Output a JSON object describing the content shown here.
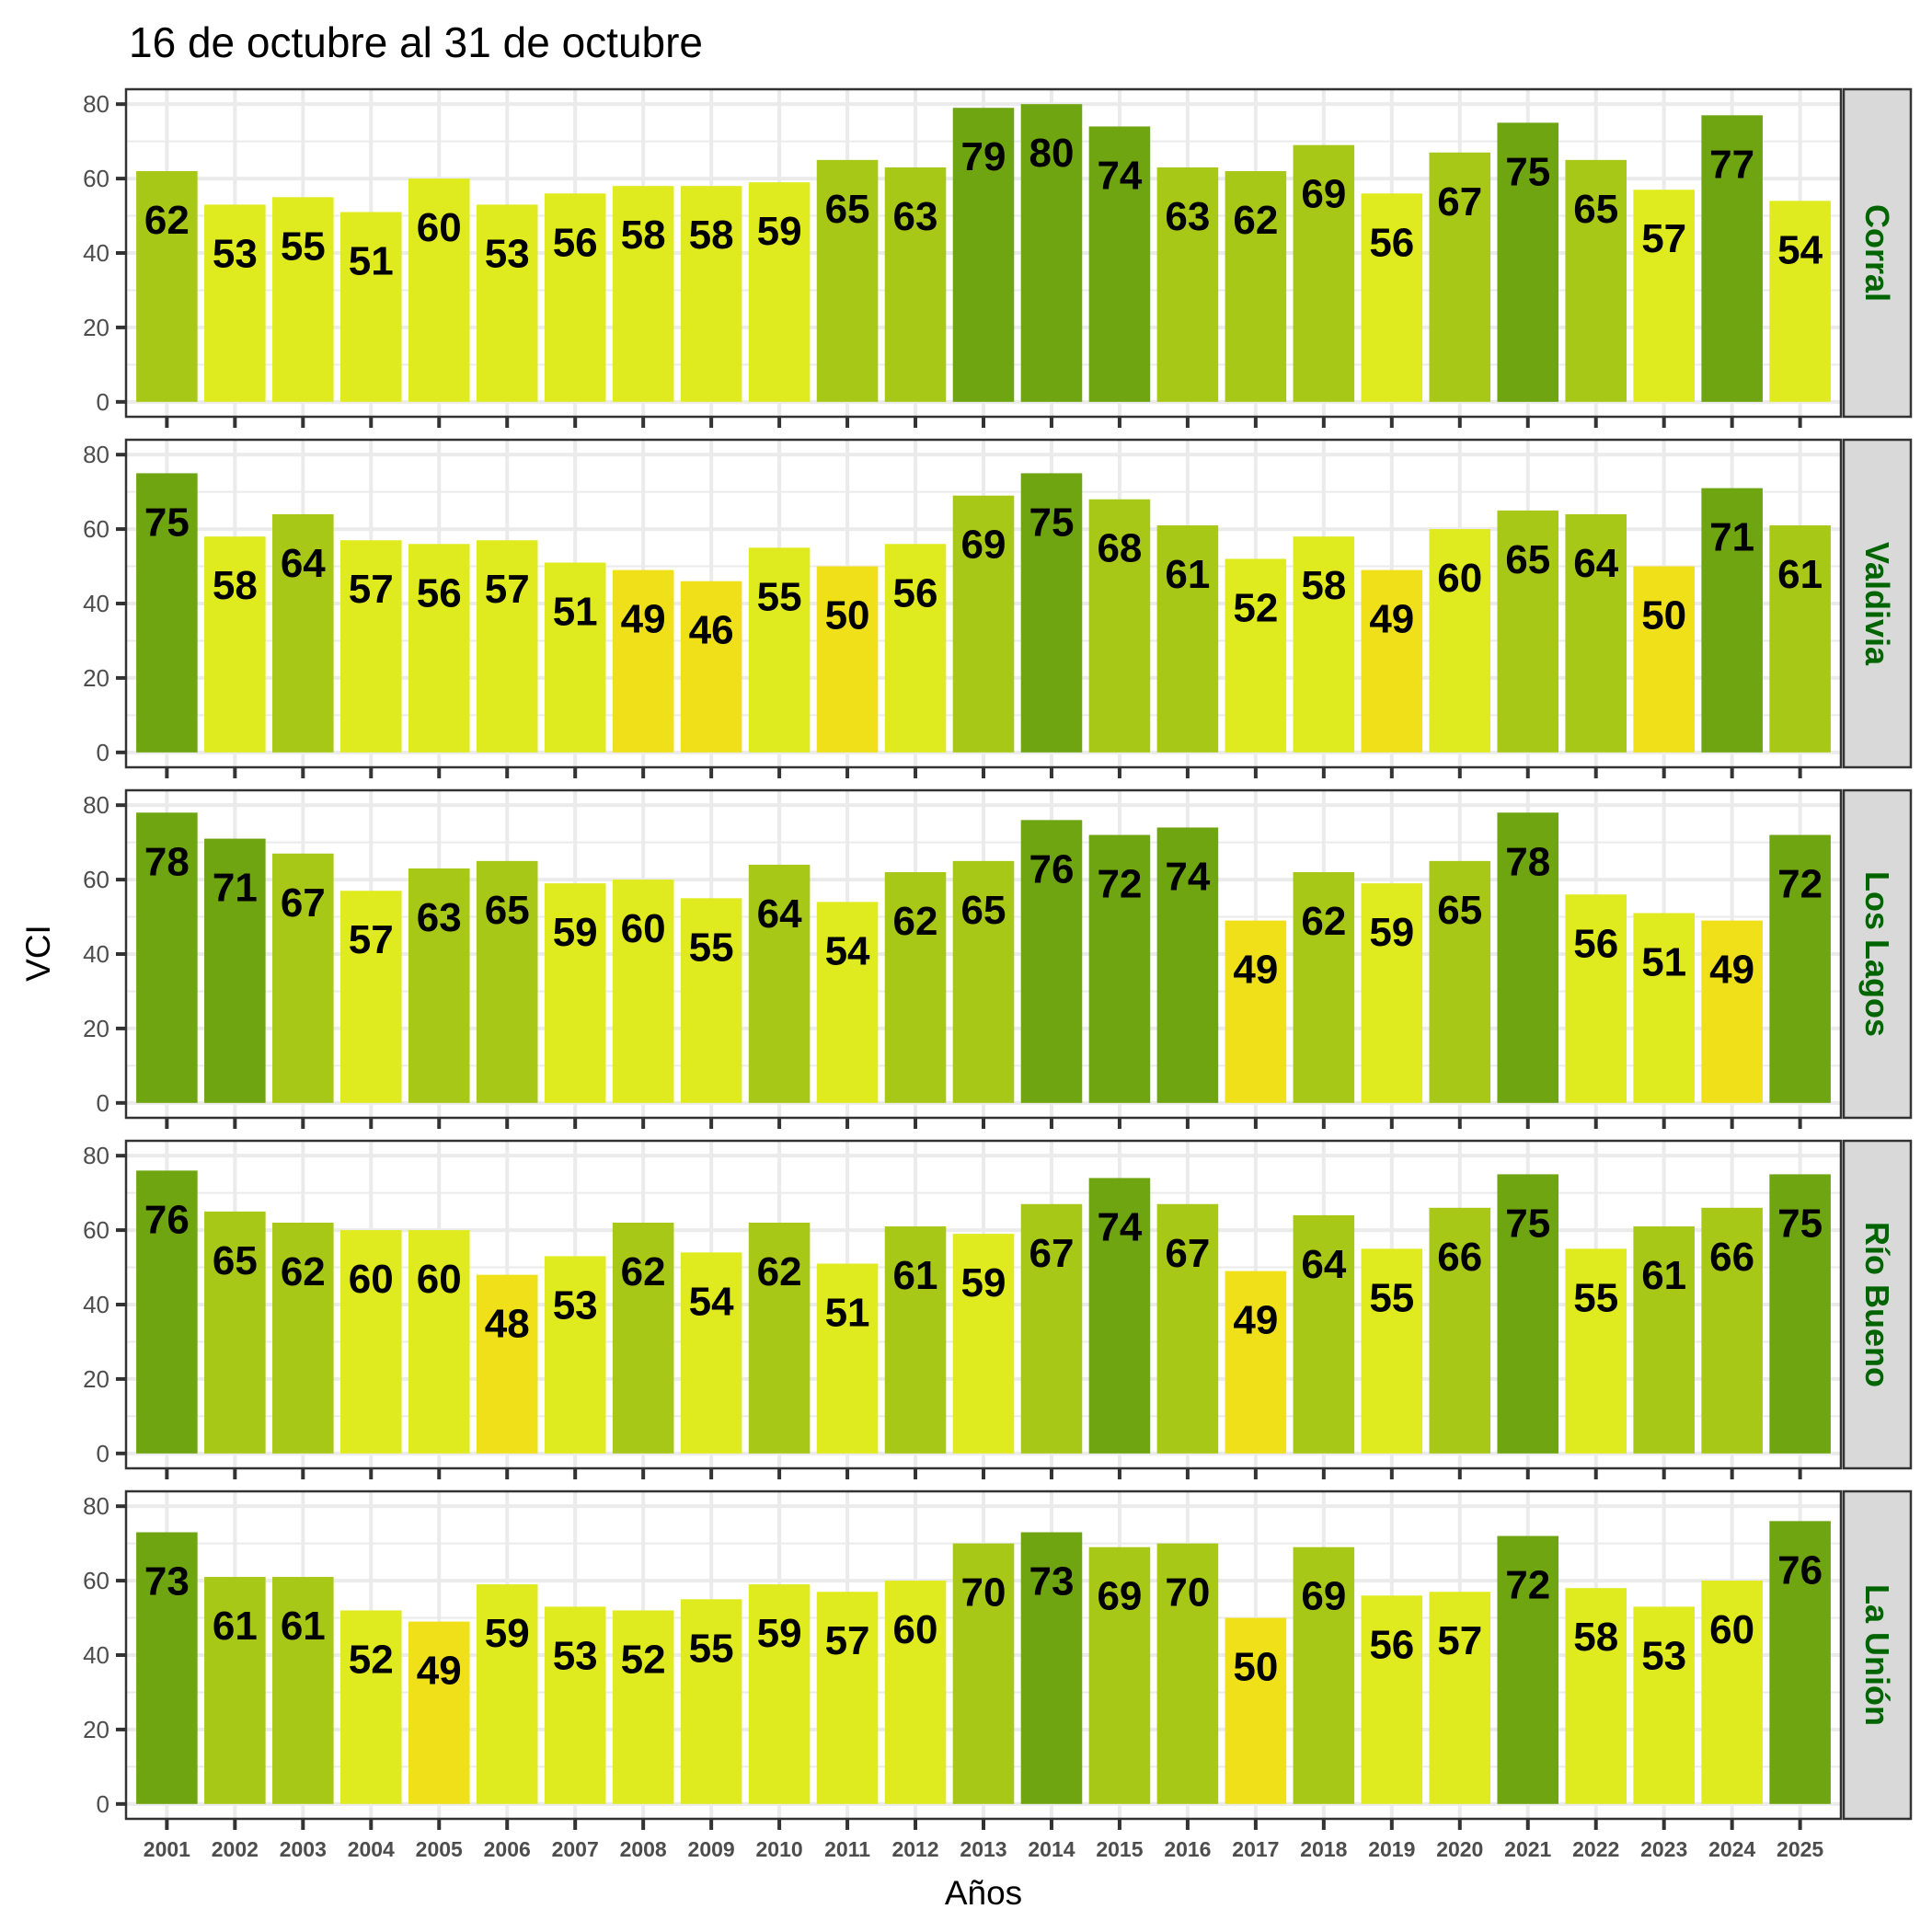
{
  "chart_data": {
    "type": "bar",
    "title": "16 de octubre al 31 de octubre",
    "xlabel": "Años",
    "ylabel": "VCI",
    "ylim": [
      0,
      80
    ],
    "yticks": [
      0,
      20,
      40,
      60,
      80
    ],
    "grid": true,
    "categories": [
      "2001",
      "2002",
      "2003",
      "2004",
      "2005",
      "2006",
      "2007",
      "2008",
      "2009",
      "2010",
      "2011",
      "2012",
      "2013",
      "2014",
      "2015",
      "2016",
      "2017",
      "2018",
      "2019",
      "2020",
      "2021",
      "2022",
      "2023",
      "2024",
      "2025"
    ],
    "color_classes": [
      {
        "name": "<=50",
        "max": 50,
        "color": "#efe01a"
      },
      {
        "name": "51-60",
        "max": 60,
        "color": "#dfeb1e"
      },
      {
        "name": "61-70",
        "max": 70,
        "color": "#a8c817"
      },
      {
        "name": ">70",
        "max": 1000,
        "color": "#6ea510"
      }
    ],
    "strip_text_color": "#006400",
    "series": [
      {
        "name": "Corral",
        "values": [
          62,
          53,
          55,
          51,
          60,
          53,
          56,
          58,
          58,
          59,
          65,
          63,
          79,
          80,
          74,
          63,
          62,
          69,
          56,
          67,
          75,
          65,
          57,
          77,
          54
        ]
      },
      {
        "name": "Valdivia",
        "values": [
          75,
          58,
          64,
          57,
          56,
          57,
          51,
          49,
          46,
          55,
          50,
          56,
          69,
          75,
          68,
          61,
          52,
          58,
          49,
          60,
          65,
          64,
          50,
          71,
          61
        ]
      },
      {
        "name": "Los Lagos",
        "values": [
          78,
          71,
          67,
          57,
          63,
          65,
          59,
          60,
          55,
          64,
          54,
          62,
          65,
          76,
          72,
          74,
          49,
          62,
          59,
          65,
          78,
          56,
          51,
          49,
          72
        ]
      },
      {
        "name": "Río Bueno",
        "values": [
          76,
          65,
          62,
          60,
          60,
          48,
          53,
          62,
          54,
          62,
          51,
          61,
          59,
          67,
          74,
          67,
          49,
          64,
          55,
          66,
          75,
          55,
          61,
          66,
          75
        ]
      },
      {
        "name": "La Unión",
        "values": [
          73,
          61,
          61,
          52,
          49,
          59,
          53,
          52,
          55,
          59,
          57,
          60,
          70,
          73,
          69,
          70,
          50,
          69,
          56,
          57,
          72,
          58,
          53,
          60,
          76
        ]
      }
    ]
  }
}
